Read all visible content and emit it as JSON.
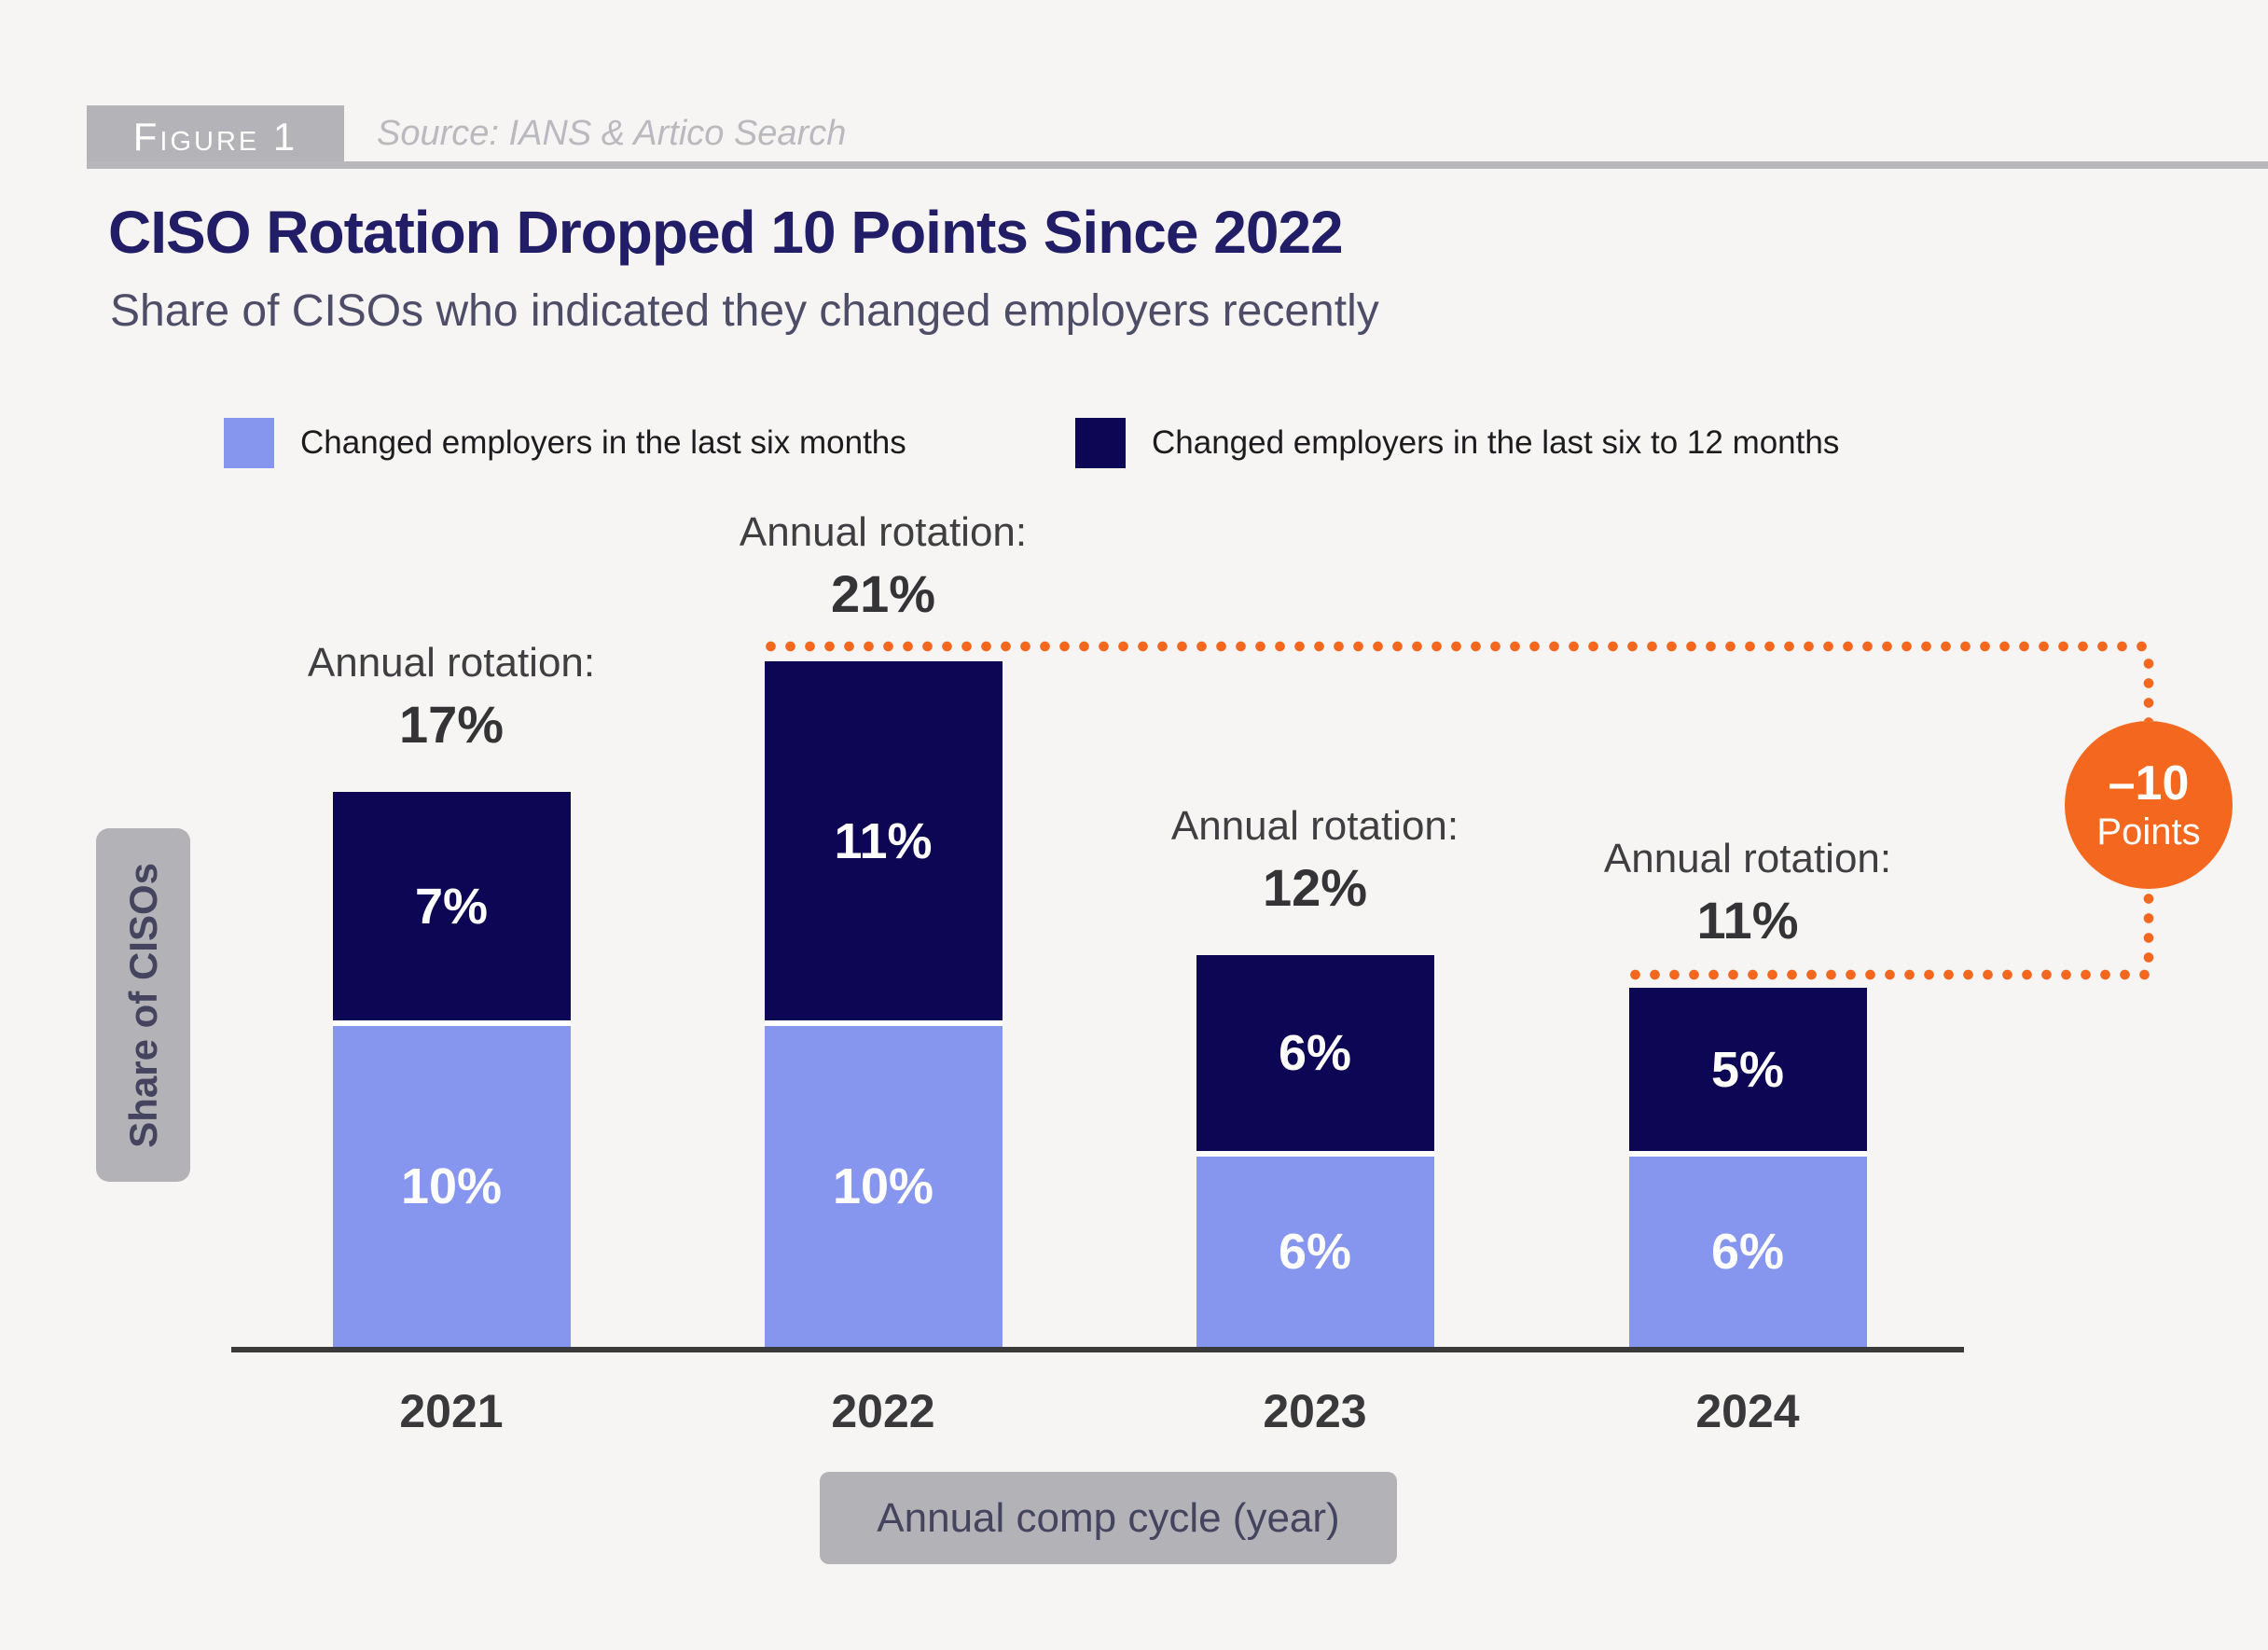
{
  "header": {
    "figure_label": "Figure 1",
    "source": "Source: IANS & Artico Search"
  },
  "title": "CISO Rotation Dropped 10 Points Since 2022",
  "subtitle": "Share of CISOs who indicated they changed employers recently",
  "legend": [
    {
      "label": "Changed employers in the last six months",
      "color": "#8695EE"
    },
    {
      "label": "Changed employers in the last six to 12 months",
      "color": "#0D0655"
    }
  ],
  "chart_data": {
    "type": "bar",
    "stacked": true,
    "categories": [
      "2021",
      "2022",
      "2023",
      "2024"
    ],
    "series": [
      {
        "name": "Changed employers in the last six months",
        "color": "#8695EE",
        "values": [
          10,
          10,
          6,
          6
        ],
        "labels": [
          "10%",
          "10%",
          "6%",
          "6%"
        ]
      },
      {
        "name": "Changed employers in the last six to 12 months",
        "color": "#0D0655",
        "values": [
          7,
          11,
          6,
          5
        ],
        "labels": [
          "7%",
          "11%",
          "6%",
          "5%"
        ]
      }
    ],
    "totals": [
      17,
      21,
      12,
      11
    ],
    "total_labels": [
      "17%",
      "21%",
      "12%",
      "11%"
    ],
    "total_label_prefix": "Annual rotation:",
    "xlabel": "Annual comp cycle (year)",
    "ylabel": "Share of CISOs",
    "ylim": [
      0,
      25
    ],
    "grid": false,
    "legend_position": "top",
    "annotation": {
      "line1": "–10",
      "line2": "Points",
      "color": "#F3681E",
      "spans_from": "2022",
      "spans_to": "2024"
    }
  }
}
